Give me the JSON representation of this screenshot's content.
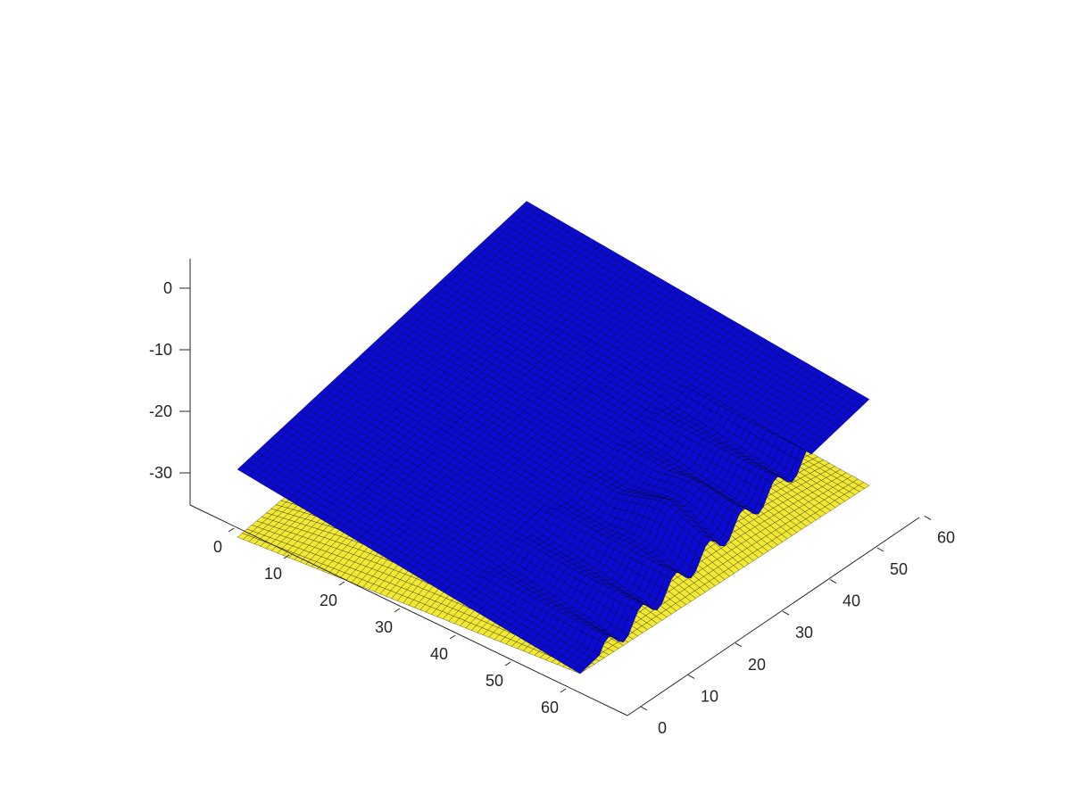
{
  "chart_data": {
    "type": "surface",
    "title": "",
    "xlabel": "",
    "ylabel": "",
    "zlabel": "",
    "grid": false,
    "view": "3d-isometric",
    "xlim": [
      -5,
      68
    ],
    "ylim": [
      0,
      62
    ],
    "zlim": [
      -35,
      5
    ],
    "x_ticks": [
      "0",
      "10",
      "20",
      "30",
      "40",
      "50",
      "60"
    ],
    "y_ticks": [
      "0",
      "10",
      "20",
      "30",
      "40",
      "50",
      "60"
    ],
    "z_ticks": [
      "0",
      "-10",
      "-20",
      "-30"
    ],
    "x_tick_values": [
      0,
      10,
      20,
      30,
      40,
      50,
      60
    ],
    "y_tick_values": [
      0,
      10,
      20,
      30,
      40,
      50,
      60
    ],
    "z_tick_values": [
      0,
      -10,
      -20,
      -30
    ],
    "grid_size": 60,
    "series": [
      {
        "id": "lower",
        "color": "#f2e934",
        "edge_color": "#000000",
        "shape": "dome",
        "corner_z": {
          "x0_y0": -10,
          "x60_y0": -30,
          "x0_y60": -9,
          "x60_y60": -20
        },
        "peak_z": -2.5
      },
      {
        "id": "upper",
        "color": "#0a0ad2",
        "edge_color": "#000000",
        "shape": "plane-with-ridges",
        "corner_z": {
          "x0_y0": -10,
          "x60_y0": -19,
          "x0_y60": 5,
          "x60_y60": -5
        },
        "feature_center": [
          8,
          28
        ],
        "ridge_length": 30
      }
    ]
  }
}
